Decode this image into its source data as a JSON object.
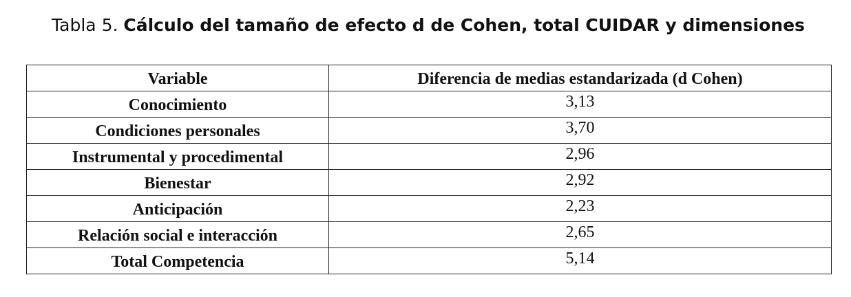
{
  "title": {
    "label": "Tabla 5.",
    "text": "Cálculo del tamaño de efecto d de Cohen, total CUIDAR y dimensiones"
  },
  "table": {
    "header": [
      "Variable",
      "Diferencia de medias estandarizada (d Cohen)"
    ],
    "rows": [
      [
        "Conocimiento",
        "3,13"
      ],
      [
        "Condiciones personales",
        "3,70"
      ],
      [
        "Instrumental y procedimental",
        "2,96"
      ],
      [
        "Bienestar",
        "2,92"
      ],
      [
        "Anticipación",
        "2,23"
      ],
      [
        "Relación social e interacción",
        "2,65"
      ],
      [
        "Total Competencia",
        "5,14"
      ]
    ]
  }
}
